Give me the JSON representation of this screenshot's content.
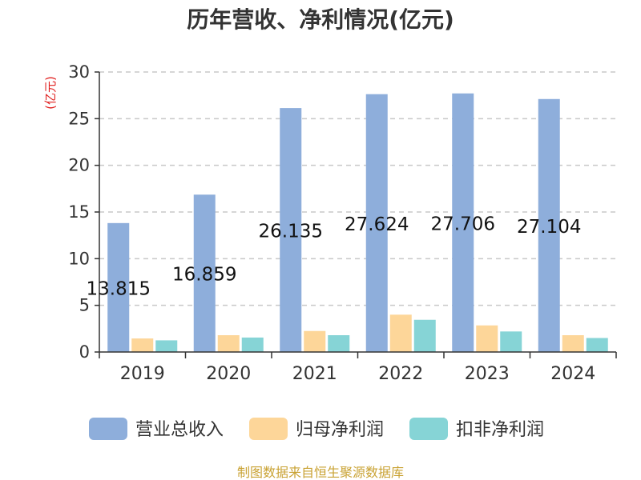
{
  "chart_data": {
    "type": "bar",
    "title": "历年营收、净利情况(亿元)",
    "unit_label": "(亿元)",
    "categories": [
      "2019",
      "2020",
      "2021",
      "2022",
      "2023",
      "2024"
    ],
    "series": [
      {
        "name": "营业总收入",
        "color": "#8eaedb",
        "values": [
          13.815,
          16.859,
          26.135,
          27.624,
          27.706,
          27.104
        ],
        "labels": [
          "13.815",
          "16.859",
          "26.135",
          "27.624",
          "27.706",
          "27.104"
        ]
      },
      {
        "name": "归母净利润",
        "color": "#fdd699",
        "values": [
          1.45,
          1.8,
          2.25,
          4.0,
          2.85,
          1.8
        ]
      },
      {
        "name": "扣非净利润",
        "color": "#86d4d6",
        "values": [
          1.25,
          1.55,
          1.8,
          3.45,
          2.2,
          1.5
        ]
      }
    ],
    "ylim": [
      0,
      30
    ],
    "yticks": [
      0,
      5,
      10,
      15,
      20,
      25,
      30
    ],
    "grid": true,
    "legend_position": "bottom"
  },
  "source": "制图数据来自恒生聚源数据库"
}
